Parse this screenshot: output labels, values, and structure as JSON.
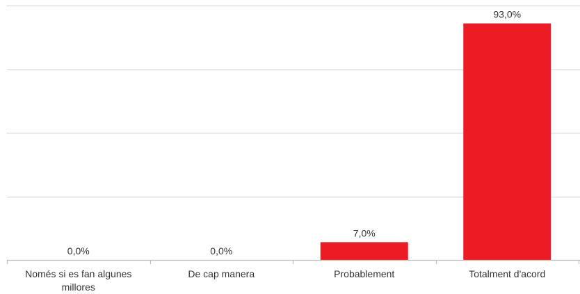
{
  "chart_data": {
    "type": "bar",
    "categories": [
      [
        "Només si es fan algunes",
        "millores"
      ],
      [
        "De cap manera"
      ],
      [
        "Probablement"
      ],
      [
        "Totalment d'acord"
      ]
    ],
    "values": [
      0.0,
      0.0,
      7.0,
      93.0
    ],
    "value_labels": [
      "0,0%",
      "0,0%",
      "7,0%",
      "93,0%"
    ],
    "title": "",
    "xlabel": "",
    "ylabel": "",
    "ylim": [
      0,
      100
    ],
    "grid": true,
    "legend": "none",
    "colors": {
      "bar": "#ed1c24",
      "grid": "#d9d9d9",
      "axis": "#bfbfbf",
      "text": "#333333"
    }
  }
}
